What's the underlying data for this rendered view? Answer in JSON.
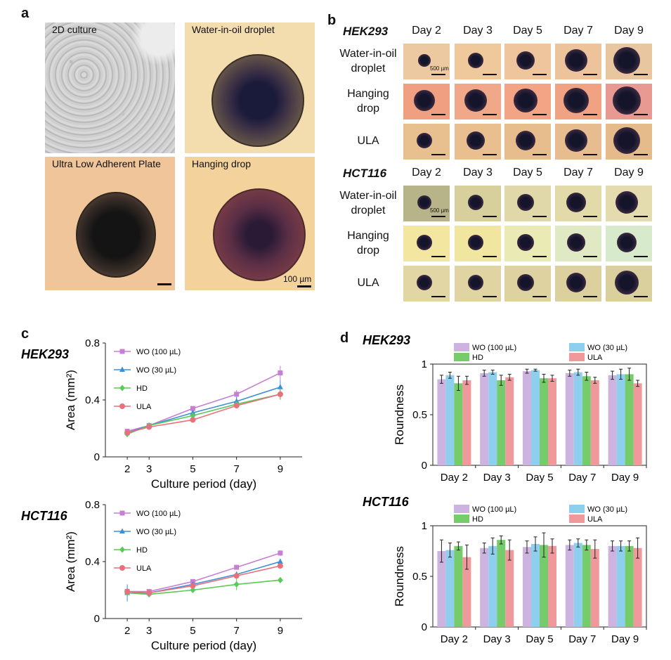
{
  "panel_a": {
    "label": "a",
    "tiles": [
      {
        "caption": "2D culture"
      },
      {
        "caption": "Water-in-oil droplet"
      },
      {
        "caption": "Ultra Low Adherent Plate"
      },
      {
        "caption": "Hanging drop"
      }
    ],
    "scale_text": "100 µm"
  },
  "panel_b": {
    "label": "b",
    "days": [
      "Day 2",
      "Day 3",
      "Day 5",
      "Day 7",
      "Day 9"
    ],
    "groups": [
      {
        "cell_line": "HEK293",
        "rows": [
          "Water-in-oil\ndroplet",
          "Hanging\ndrop",
          "ULA"
        ]
      },
      {
        "cell_line": "HCT116",
        "rows": [
          "Water-in-oil\ndroplet",
          "Hanging\ndrop",
          "ULA"
        ]
      }
    ],
    "scale_text": "500 µm"
  },
  "panel_c": {
    "label": "c"
  },
  "panel_d": {
    "label": "d"
  },
  "colors": {
    "wo100": "#c77fd4",
    "wo30": "#3d8fd6",
    "hd": "#5cc85a",
    "ula": "#e8707a",
    "wo100_bar": "#cdb4e0",
    "wo30_bar": "#8fcfee",
    "hd_bar": "#76cc6a",
    "ula_bar": "#f0999c"
  },
  "chart_data": [
    {
      "id": "c-hek",
      "type": "line",
      "title": "HEK293",
      "xlabel": "Culture period (day)",
      "ylabel": "Area (mm²)",
      "x": [
        2,
        3,
        5,
        7,
        9
      ],
      "xticks": [
        "2",
        "3",
        "5",
        "7",
        "9"
      ],
      "yticks": [
        "0",
        "0.4",
        "0.8"
      ],
      "ylim": [
        0,
        0.8
      ],
      "series": [
        {
          "name": "WO (100 µL)",
          "values": [
            0.18,
            0.22,
            0.34,
            0.44,
            0.59
          ],
          "err": [
            0.01,
            0.01,
            0.01,
            0.03,
            0.05
          ]
        },
        {
          "name": "WO (30 µL)",
          "values": [
            0.17,
            0.22,
            0.31,
            0.39,
            0.49
          ],
          "err": [
            0.01,
            0.02,
            0.02,
            0.03,
            0.05
          ]
        },
        {
          "name": "HD",
          "values": [
            0.16,
            0.22,
            0.29,
            0.37,
            0.44
          ],
          "err": [
            0.01,
            0.02,
            0.01,
            0.02,
            0.04
          ]
        },
        {
          "name": "ULA",
          "values": [
            0.17,
            0.21,
            0.26,
            0.36,
            0.44
          ],
          "err": [
            0.01,
            0.01,
            0.01,
            0.01,
            0.03
          ]
        }
      ]
    },
    {
      "id": "c-hct",
      "type": "line",
      "title": "HCT116",
      "xlabel": "Culture period (day)",
      "ylabel": "Area (mm²)",
      "x": [
        2,
        3,
        5,
        7,
        9
      ],
      "xticks": [
        "2",
        "3",
        "5",
        "7",
        "9"
      ],
      "yticks": [
        "0",
        "0.4",
        "0.8"
      ],
      "ylim": [
        0,
        0.8
      ],
      "series": [
        {
          "name": "WO (100 µL)",
          "values": [
            0.19,
            0.19,
            0.26,
            0.36,
            0.46
          ],
          "err": [
            0.03,
            0.01,
            0.01,
            0.01,
            0.02
          ]
        },
        {
          "name": "WO (30 µL)",
          "values": [
            0.18,
            0.18,
            0.24,
            0.31,
            0.4
          ],
          "err": [
            0.06,
            0.01,
            0.01,
            0.02,
            0.02
          ]
        },
        {
          "name": "HD",
          "values": [
            0.18,
            0.17,
            0.2,
            0.24,
            0.27
          ],
          "err": [
            0.02,
            0.01,
            0.01,
            0.04,
            0.02
          ]
        },
        {
          "name": "ULA",
          "values": [
            0.19,
            0.18,
            0.23,
            0.3,
            0.37
          ],
          "err": [
            0.02,
            0.01,
            0.01,
            0.02,
            0.02
          ]
        }
      ]
    },
    {
      "id": "d-hek",
      "type": "bar",
      "title": "HEK293",
      "ylabel": "Roundness",
      "categories": [
        "Day 2",
        "Day 3",
        "Day 5",
        "Day 7",
        "Day 9"
      ],
      "yticks": [
        "0",
        "0.5",
        "1"
      ],
      "ylim": [
        0,
        1
      ],
      "series": [
        {
          "name": "WO (100 µL)",
          "values": [
            0.85,
            0.91,
            0.93,
            0.91,
            0.89
          ],
          "err": [
            0.04,
            0.03,
            0.02,
            0.03,
            0.04
          ]
        },
        {
          "name": "WO (30 µL)",
          "values": [
            0.89,
            0.92,
            0.94,
            0.92,
            0.9
          ],
          "err": [
            0.03,
            0.02,
            0.01,
            0.03,
            0.05
          ]
        },
        {
          "name": "HD",
          "values": [
            0.81,
            0.84,
            0.86,
            0.88,
            0.9
          ],
          "err": [
            0.07,
            0.05,
            0.04,
            0.04,
            0.06
          ]
        },
        {
          "name": "ULA",
          "values": [
            0.84,
            0.87,
            0.86,
            0.84,
            0.81
          ],
          "err": [
            0.04,
            0.03,
            0.03,
            0.03,
            0.03
          ]
        }
      ]
    },
    {
      "id": "d-hct",
      "type": "bar",
      "title": "HCT116",
      "ylabel": "Roundness",
      "categories": [
        "Day 2",
        "Day 3",
        "Day 5",
        "Day 7",
        "Day 9"
      ],
      "yticks": [
        "0",
        "0.5",
        "1"
      ],
      "ylim": [
        0,
        1
      ],
      "series": [
        {
          "name": "WO (100 µL)",
          "values": [
            0.75,
            0.78,
            0.79,
            0.81,
            0.8
          ],
          "err": [
            0.11,
            0.05,
            0.06,
            0.05,
            0.05
          ]
        },
        {
          "name": "WO (30 µL)",
          "values": [
            0.76,
            0.8,
            0.82,
            0.83,
            0.8
          ],
          "err": [
            0.07,
            0.08,
            0.07,
            0.04,
            0.05
          ]
        },
        {
          "name": "HD",
          "values": [
            0.8,
            0.86,
            0.81,
            0.81,
            0.8
          ],
          "err": [
            0.04,
            0.04,
            0.12,
            0.05,
            0.05
          ]
        },
        {
          "name": "ULA",
          "values": [
            0.69,
            0.76,
            0.8,
            0.77,
            0.78
          ],
          "err": [
            0.12,
            0.1,
            0.07,
            0.09,
            0.1
          ]
        }
      ]
    }
  ]
}
